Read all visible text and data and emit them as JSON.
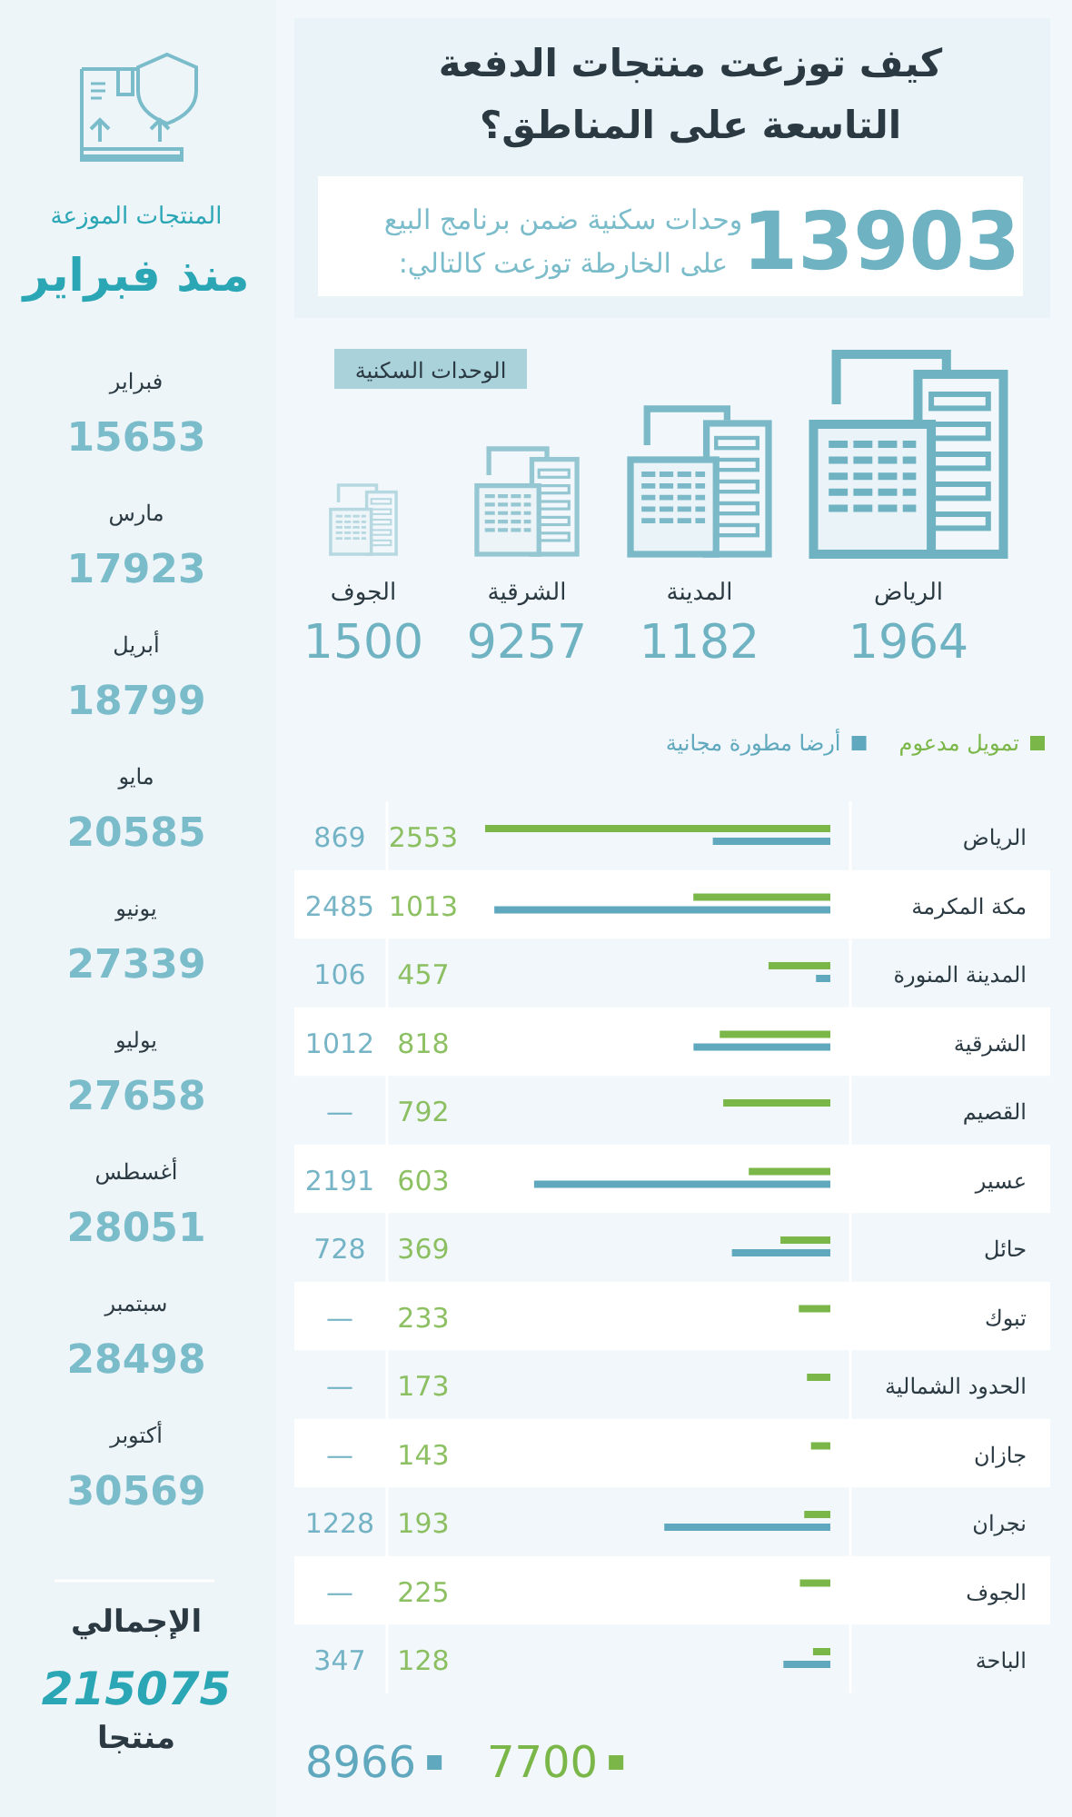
{
  "chart_data": [
    {
      "type": "other",
      "title": "كيف توزعت منتجات الدفعة التاسعة على المناطق؟",
      "annotations": [
        "13903",
        "وحدات سكنية ضمن برنامج البيع على الخارطة توزعت كالتالي:"
      ]
    },
    {
      "type": "other",
      "title": "الوحدات السكنية",
      "categories": [
        "الرياض",
        "المدينة",
        "الشرقية",
        "الجوف"
      ],
      "values": [
        1964,
        1182,
        9257,
        1500
      ],
      "color": "#6fb3c3",
      "data_labels": true
    },
    {
      "type": "bar",
      "orientation": "horizontal",
      "categories": [
        "الرياض",
        "مكة المكرمة",
        "المدينة المنورة",
        "الشرقية",
        "القصيم",
        "عسير",
        "حائل",
        "تبوك",
        "الحدود الشمالية",
        "جازان",
        "نجران",
        "الجوف",
        "الباحة"
      ],
      "series": [
        {
          "name": "تمويل مدعوم",
          "color": "#7ab648",
          "values": [
            2553,
            1013,
            457,
            818,
            792,
            603,
            369,
            233,
            173,
            143,
            193,
            225,
            128
          ],
          "value_labels": [
            "2553",
            "1013",
            "457",
            "818",
            "792",
            "603",
            "369",
            "233",
            "173",
            "143",
            "193",
            "225",
            "128"
          ]
        },
        {
          "name": "أرضا مطورة مجانية",
          "color": "#5fa8bd",
          "values": [
            869,
            2485,
            106,
            1012,
            null,
            2191,
            728,
            null,
            null,
            null,
            1228,
            null,
            347
          ],
          "value_labels": [
            "869",
            "2485",
            "106",
            "1012",
            "—",
            "2191",
            "728",
            "—",
            "—",
            "—",
            "1228",
            "—",
            "347"
          ]
        }
      ],
      "legend": "top right",
      "annotations": [
        "8966",
        "7700"
      ]
    },
    {
      "type": "other",
      "title": "المنتجات الموزعة",
      "subtitle": "منذ فبراير",
      "categories": [
        "فبراير",
        "مارس",
        "أبريل",
        "مايو",
        "يونيو",
        "يوليو",
        "أغسطس",
        "سبتمبر",
        "أكتوبر"
      ],
      "values": [
        15653,
        17923,
        18799,
        20585,
        27339,
        27658,
        28051,
        28498,
        30569
      ],
      "color": "#7bbccb",
      "data_labels": true,
      "annotations": [
        "الإجمالي",
        "215075",
        "منتجا"
      ]
    }
  ]
}
